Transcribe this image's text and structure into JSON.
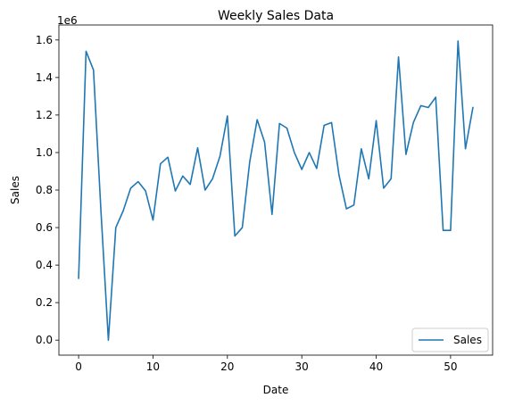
{
  "chart_data": {
    "type": "line",
    "title": "Weekly Sales Data",
    "xlabel": "Date",
    "ylabel": "Sales",
    "y_scale_label": "1e6",
    "xlim": [
      -2.65,
      55.65
    ],
    "ylim": [
      -80000,
      1680000
    ],
    "x_ticks": [
      0,
      10,
      20,
      30,
      40,
      50
    ],
    "y_ticks": [
      0,
      200000,
      400000,
      600000,
      800000,
      1000000,
      1200000,
      1400000,
      1600000
    ],
    "y_tick_labels": [
      "0.0",
      "0.2",
      "0.4",
      "0.6",
      "0.8",
      "1.0",
      "1.2",
      "1.4",
      "1.6"
    ],
    "grid": false,
    "legend_position": "lower-right",
    "colors": {
      "line": "#1f77b4"
    },
    "series": [
      {
        "name": "Sales",
        "x": [
          0,
          1,
          2,
          3,
          4,
          5,
          6,
          7,
          8,
          9,
          10,
          11,
          12,
          13,
          14,
          15,
          16,
          17,
          18,
          19,
          20,
          21,
          22,
          23,
          24,
          25,
          26,
          27,
          28,
          29,
          30,
          31,
          32,
          33,
          34,
          35,
          36,
          37,
          38,
          39,
          40,
          41,
          42,
          43,
          44,
          45,
          46,
          47,
          48,
          49,
          50,
          51,
          52,
          53
        ],
        "values": [
          330000,
          1540000,
          1440000,
          690000,
          0,
          600000,
          690000,
          810000,
          845000,
          795000,
          640000,
          940000,
          975000,
          795000,
          875000,
          830000,
          1025000,
          800000,
          860000,
          980000,
          1195000,
          555000,
          600000,
          950000,
          1175000,
          1055000,
          670000,
          1155000,
          1130000,
          1000000,
          910000,
          1000000,
          915000,
          1145000,
          1160000,
          880000,
          700000,
          720000,
          1020000,
          860000,
          1170000,
          810000,
          860000,
          1510000,
          990000,
          1160000,
          1250000,
          1240000,
          1295000,
          585000,
          585000,
          1595000,
          1020000,
          1240000
        ]
      }
    ]
  }
}
